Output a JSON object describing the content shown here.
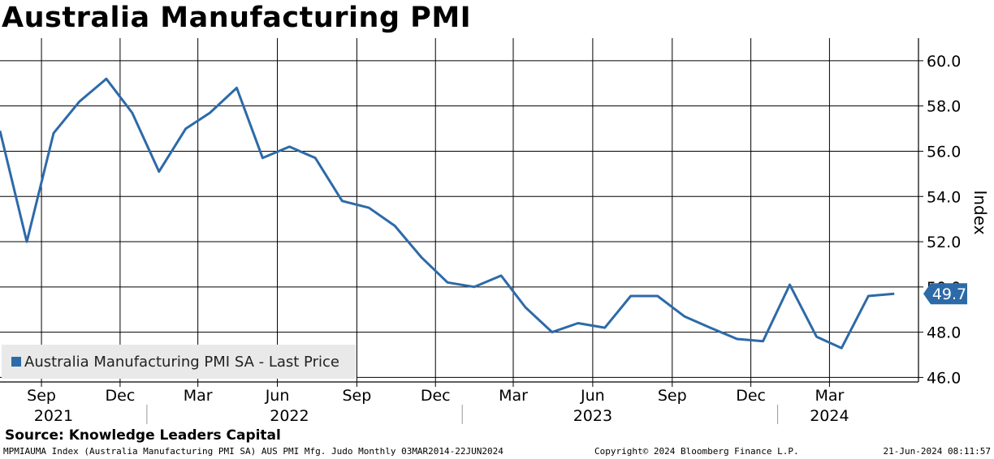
{
  "title": "Australia Manufacturing PMI",
  "source": "Source: Knowledge Leaders Capital",
  "footer": {
    "left": "MPMIAUMA Index (Australia Manufacturing PMI SA) AUS PMI Mfg. Judo  Monthly 03MAR2014-22JUN2024",
    "center": "Copyright© 2024 Bloomberg Finance L.P.",
    "right": "21-Jun-2024 08:11:57"
  },
  "colors": {
    "series": "#2d6aa8",
    "grid": "#000000",
    "legend_bg": "#e9e9e9"
  },
  "chart_data": {
    "type": "line",
    "ylabel": "Index",
    "ylim": [
      45.8,
      61.0
    ],
    "yticks": [
      46.0,
      48.0,
      50.0,
      52.0,
      54.0,
      56.0,
      58.0,
      60.0
    ],
    "xlim": [
      "2021-07-15",
      "2024-06-12"
    ],
    "month_ticks": [
      {
        "date": "2021-09-01",
        "label": "Sep"
      },
      {
        "date": "2021-12-01",
        "label": "Dec"
      },
      {
        "date": "2022-03-01",
        "label": "Mar"
      },
      {
        "date": "2022-06-01",
        "label": "Jun"
      },
      {
        "date": "2022-09-01",
        "label": "Sep"
      },
      {
        "date": "2022-12-01",
        "label": "Dec"
      },
      {
        "date": "2023-03-01",
        "label": "Mar"
      },
      {
        "date": "2023-06-01",
        "label": "Jun"
      },
      {
        "date": "2023-09-01",
        "label": "Sep"
      },
      {
        "date": "2023-12-01",
        "label": "Dec"
      },
      {
        "date": "2024-03-01",
        "label": "Mar"
      }
    ],
    "year_labels": [
      {
        "label": "2021",
        "center": "2021-09-15"
      },
      {
        "label": "2022",
        "center": "2022-06-15"
      },
      {
        "label": "2023",
        "center": "2023-06-01"
      },
      {
        "label": "2024",
        "center": "2024-03-01"
      }
    ],
    "year_boundaries": [
      "2022-01-01",
      "2023-01-01",
      "2024-01-01"
    ],
    "series": [
      {
        "name": "Australia Manufacturing PMI SA - Last Price",
        "x": [
          "2021-07-15",
          "2021-08-15",
          "2021-09-15",
          "2021-10-15",
          "2021-11-15",
          "2021-12-15",
          "2022-01-15",
          "2022-02-15",
          "2022-03-15",
          "2022-04-15",
          "2022-05-15",
          "2022-06-15",
          "2022-07-15",
          "2022-08-15",
          "2022-09-15",
          "2022-10-15",
          "2022-11-15",
          "2022-12-15",
          "2023-01-15",
          "2023-02-15",
          "2023-03-15",
          "2023-04-15",
          "2023-05-15",
          "2023-06-15",
          "2023-07-15",
          "2023-08-15",
          "2023-09-15",
          "2023-10-15",
          "2023-11-15",
          "2023-12-15",
          "2024-01-15",
          "2024-02-15",
          "2024-03-15",
          "2024-04-15",
          "2024-05-15"
        ],
        "values": [
          56.9,
          52.0,
          56.8,
          58.2,
          59.2,
          57.7,
          55.1,
          57.0,
          57.7,
          58.8,
          55.7,
          56.2,
          55.7,
          53.8,
          53.5,
          52.7,
          51.3,
          50.2,
          50.0,
          50.5,
          49.1,
          48.0,
          48.4,
          48.2,
          49.6,
          49.6,
          48.7,
          48.2,
          47.7,
          47.6,
          50.1,
          47.8,
          47.3,
          49.6,
          49.7
        ]
      }
    ],
    "last_value_label": "49.7"
  }
}
